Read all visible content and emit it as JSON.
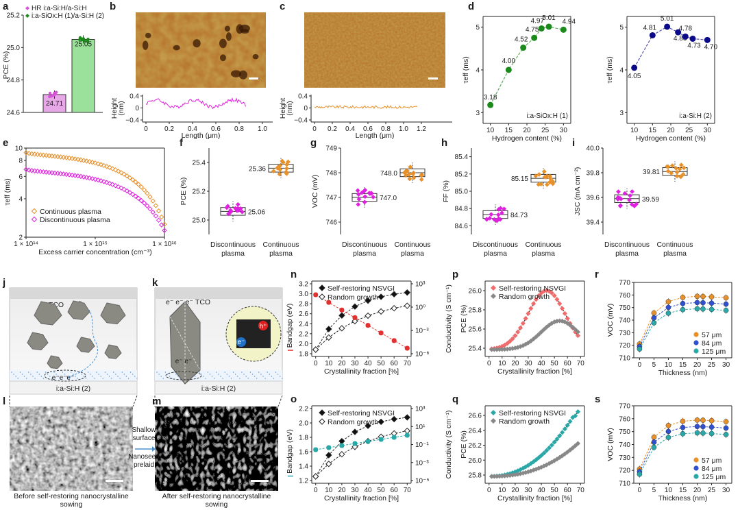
{
  "panel_letters": [
    "a",
    "b",
    "c",
    "d",
    "e",
    "f",
    "g",
    "h",
    "i",
    "j",
    "k",
    "l",
    "m",
    "n",
    "o",
    "p",
    "q",
    "r",
    "s"
  ],
  "colors": {
    "pink": "#d654d6",
    "green_bar": "#8fd88f",
    "green": "#1a8a1a",
    "navy": "#0a0a8a",
    "orange": "#e8902a",
    "magenta": "#e020e0",
    "red": "#e03030",
    "teal": "#2aa8a8",
    "gray": "#888888",
    "blue": "#3050d0"
  },
  "chart_data": [
    {
      "panel": "a",
      "type": "bar",
      "ylabel": "PCE (%)",
      "ylim": [
        24.6,
        25.2
      ],
      "yticks": [
        24.6,
        24.8,
        25.0,
        25.2
      ],
      "series": [
        {
          "name": "HR i:a-Si:H/a-Si:H",
          "value": 24.71,
          "label": "24.71"
        },
        {
          "name": "i:a-SiOx:H (1)/a-Si:H (2)",
          "value": 25.05,
          "label": "25.05"
        }
      ]
    },
    {
      "panel": "b",
      "type": "line",
      "ylabel": "Height (nm)",
      "xlabel": "Length (μm)",
      "ylim": [
        -0.4,
        0.4
      ],
      "yticks": [
        "0.4",
        "0",
        "−0.4"
      ],
      "xticks": [
        "0",
        "0.2",
        "0.4",
        "0.6",
        "0.8",
        "1.0"
      ]
    },
    {
      "panel": "c",
      "type": "line",
      "ylabel": "Height (nm)",
      "xlabel": "Length (μm)",
      "ylim": [
        -0.4,
        0.4
      ],
      "yticks": [
        "0.4",
        "0",
        "−0.4"
      ],
      "xticks": [
        "0",
        "0.2",
        "0.4",
        "0.6",
        "0.8",
        "1.0",
        "1.2"
      ]
    },
    {
      "panel": "d1",
      "type": "line",
      "ylabel": "τeff (ms)",
      "xlabel": "Hydrogen content (%)",
      "xlim": [
        8,
        32
      ],
      "ylim": [
        3,
        5
      ],
      "xticks": [
        10,
        15,
        20,
        25,
        30
      ],
      "yticks": [
        3,
        4,
        5
      ],
      "note": "i:a-SiOx:H (1)",
      "x": [
        10,
        15,
        19,
        22,
        24,
        26,
        30
      ],
      "y": [
        3.18,
        4.0,
        4.52,
        4.75,
        4.97,
        5.01,
        4.94
      ],
      "labels": [
        "3.18",
        "4.00",
        "4.52",
        "4.75",
        "4.97",
        "5.01",
        "4.94"
      ]
    },
    {
      "panel": "d2",
      "type": "line",
      "ylabel": "τeff (ms)",
      "xlabel": "Hydrogen content (%)",
      "xlim": [
        8,
        32
      ],
      "ylim": [
        3,
        5
      ],
      "xticks": [
        10,
        15,
        20,
        25,
        30
      ],
      "yticks": [
        3,
        4,
        5
      ],
      "note": "i:a-Si:H (2)",
      "x": [
        10,
        15,
        19,
        22,
        24,
        26,
        30
      ],
      "y": [
        4.05,
        4.81,
        5.01,
        4.88,
        4.78,
        4.73,
        4.7
      ],
      "labels": [
        "4.05",
        "4.81",
        "5.01",
        "4.88",
        "4.78",
        "4.73",
        "4.70"
      ]
    },
    {
      "panel": "e",
      "type": "line",
      "ylabel": "τeff (ms)",
      "xlabel": "Excess carrier concentration (cm⁻³)",
      "xticks": [
        "1 × 10¹⁴",
        "1 × 10¹⁵",
        "1 × 10¹⁶"
      ],
      "yticks": [
        "2",
        "4",
        "6",
        "8",
        "10"
      ],
      "log": true,
      "series": [
        {
          "name": "Continuous plasma"
        },
        {
          "name": "Discontinuous plasma"
        }
      ]
    },
    {
      "panel": "f",
      "type": "box",
      "ylabel": "PCE (%)",
      "ylim": [
        24.9,
        25.5
      ],
      "yticks": [
        25.0,
        25.2,
        25.4
      ],
      "categories": [
        "Discontinuous plasma",
        "Continuous plasma"
      ],
      "medians": [
        25.06,
        25.36
      ],
      "labels": [
        "25.06",
        "25.36"
      ]
    },
    {
      "panel": "g",
      "type": "box",
      "ylabel": "VOC (mV)",
      "ylim": [
        745.5,
        749
      ],
      "yticks": [
        746,
        747,
        748,
        749
      ],
      "categories": [
        "Discontinuous plasma",
        "Continuous plasma"
      ],
      "medians": [
        747.0,
        748.0
      ],
      "labels": [
        "747.0",
        "748.0"
      ]
    },
    {
      "panel": "h",
      "type": "box",
      "ylabel": "FF (%)",
      "ylim": [
        84.5,
        85.5
      ],
      "yticks": [
        84.6,
        84.8,
        85.0,
        85.2,
        85.4
      ],
      "categories": [
        "Discontinuous plasma",
        "Continuous plasma"
      ],
      "medians": [
        84.73,
        85.15
      ],
      "labels": [
        "84.73",
        "85.15"
      ]
    },
    {
      "panel": "i",
      "type": "box",
      "ylabel": "JSC (mA cm⁻²)",
      "ylim": [
        39.3,
        40.0
      ],
      "yticks": [
        39.4,
        39.6,
        39.8,
        40.0
      ],
      "categories": [
        "Discontinuous plasma",
        "Continuous plasma"
      ],
      "medians": [
        39.59,
        39.81
      ],
      "labels": [
        "39.59",
        "39.81"
      ]
    },
    {
      "panel": "n",
      "type": "line",
      "xlabel": "Crystallinity fraction [%]",
      "ylabel": "Bandgap (eV)",
      "y2label": "Conductivity (S cm⁻¹)",
      "xticks": [
        0,
        10,
        20,
        30,
        40,
        50,
        60,
        70
      ],
      "yticks": [
        "1.8",
        "2.0",
        "2.2",
        "2.4",
        "2.6",
        "2.8",
        "3.0",
        "3.2"
      ],
      "y2ticks": [
        "10³",
        "10⁰",
        "10⁻³",
        "10⁻⁶"
      ],
      "series": [
        {
          "name": "Self-restoring NSVGI"
        },
        {
          "name": "Random growth"
        }
      ]
    },
    {
      "panel": "o",
      "type": "line",
      "xlabel": "Crystallinity fraction [%]",
      "ylabel": "Bandgap (eV)",
      "y2label": "Conductivity (S cm⁻¹)",
      "xticks": [
        0,
        10,
        20,
        30,
        40,
        50,
        60,
        70
      ],
      "yticks": [
        "1.2",
        "1.4",
        "1.6",
        "1.8",
        "2.0",
        "2.2"
      ],
      "y2ticks": [
        "10³",
        "10¹",
        "10⁻¹",
        "10⁻³",
        "10⁻⁵"
      ],
      "series": [
        {
          "name": "Self-restoring NSVGI"
        },
        {
          "name": "Random growth"
        }
      ]
    },
    {
      "panel": "p",
      "type": "scatter",
      "xlabel": "Crystallinity fraction [%]",
      "ylabel": "PCE (%)",
      "xticks": [
        0,
        10,
        20,
        30,
        40,
        50,
        60,
        70
      ],
      "yticks": [
        "25.4",
        "25.6",
        "25.8",
        "26.0"
      ],
      "series": [
        {
          "name": "Self-restoring NSVGI"
        },
        {
          "name": "Random growth"
        }
      ]
    },
    {
      "panel": "q",
      "type": "scatter",
      "xlabel": "Crystallinity fraction [%]",
      "ylabel": "PCE (%)",
      "xticks": [
        0,
        10,
        20,
        30,
        40,
        50,
        60,
        70
      ],
      "yticks": [
        "25.8",
        "26.0",
        "26.2",
        "26.4",
        "26.6"
      ],
      "series": [
        {
          "name": "Self-restoring NSVGI"
        },
        {
          "name": "Random growth"
        }
      ]
    },
    {
      "panel": "r",
      "type": "line",
      "xlabel": "Thickness (nm)",
      "ylabel": "VOC (mV)",
      "xticks": [
        0,
        5,
        10,
        15,
        20,
        25,
        30
      ],
      "yticks": [
        710,
        720,
        730,
        740,
        750,
        760,
        770
      ],
      "series": [
        {
          "name": "57 μm"
        },
        {
          "name": "84 μm"
        },
        {
          "name": "125 μm"
        }
      ]
    },
    {
      "panel": "s",
      "type": "line",
      "xlabel": "Thickness (nm)",
      "ylabel": "VOC (mV)",
      "xticks": [
        0,
        5,
        10,
        15,
        20,
        25,
        30
      ],
      "yticks": [
        710,
        720,
        730,
        740,
        750,
        760,
        770
      ],
      "series": [
        {
          "name": "57 μm"
        },
        {
          "name": "84 μm"
        },
        {
          "name": "125 μm"
        }
      ]
    }
  ],
  "schematic": {
    "tco": "TCO",
    "electron": "e⁻",
    "substrate": "i:a-Si:H (2)",
    "arrow_top": "Shallow surface",
    "arrow_bottom": "Nanoseed prelaid",
    "hole": "h⁺",
    "before": "Before self-restoring nanocrystalline sowing",
    "after": "After self-restoring nanocrystalline sowing"
  }
}
